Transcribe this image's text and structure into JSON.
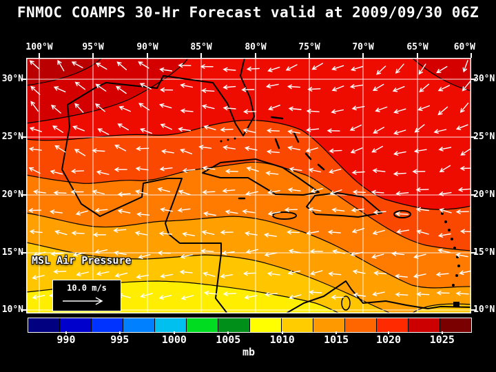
{
  "title": "FNMOC COAMPS 30-Hr Forecast valid at 2009/09/30 06Z",
  "axes": {
    "lon_labels": [
      "100°W",
      "95°W",
      "90°W",
      "85°W",
      "80°W",
      "75°W",
      "70°W",
      "65°W",
      "60°W"
    ],
    "lat_labels": [
      "30°N",
      "25°N",
      "20°N",
      "15°N",
      "10°N"
    ]
  },
  "map": {
    "field_label": "MSL Air Pressure",
    "wind_legend_label": "10.0 m/s",
    "colors": {
      "background": "#000000",
      "text": "#ffffff",
      "grid": "#ffffff",
      "coastline": "#000000",
      "contour": "#000000",
      "wind_arrow": "#ffffff",
      "band_base_orange": "#ff7b00",
      "band_orange_red": "#fa4800",
      "band_red": "#ee0c00",
      "band_dark_red": "#d40000",
      "band_darker_red": "#ba0000",
      "band_light_orange": "#ffa000",
      "band_amber": "#ffc600",
      "band_yellow": "#ffee00"
    }
  },
  "colorbar": {
    "unit": "mb",
    "tick_labels": [
      "990",
      "995",
      "1000",
      "1005",
      "1010",
      "1015",
      "1020",
      "1025"
    ],
    "segment_colors": [
      "#000080",
      "#0000cd",
      "#0033ff",
      "#0080ff",
      "#00c0f0",
      "#00dd20",
      "#00901a",
      "#ffff00",
      "#ffcc00",
      "#ff9900",
      "#ff6600",
      "#ff2a00",
      "#cc0000",
      "#7a0000"
    ]
  }
}
